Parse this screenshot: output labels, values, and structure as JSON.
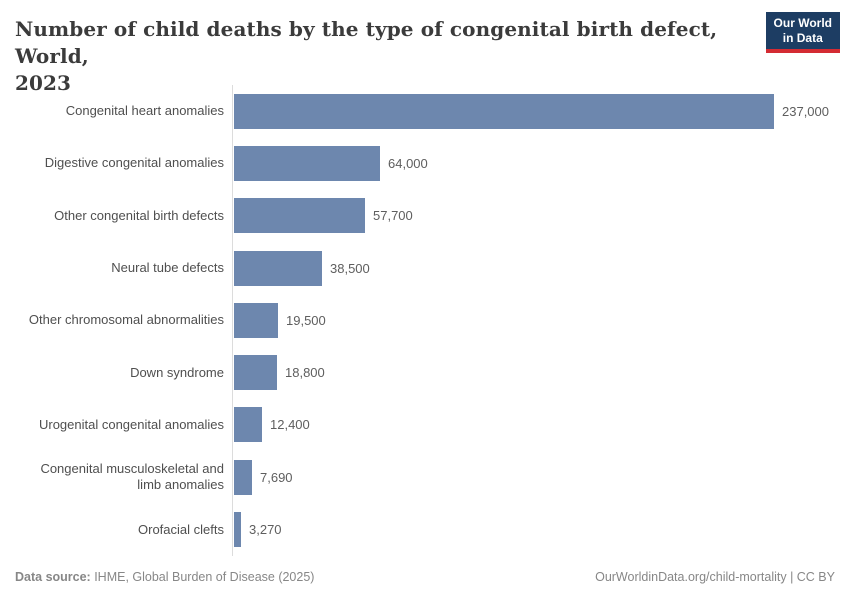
{
  "header": {
    "title_line1": "Number of child deaths by the type of congenital birth defect, World,",
    "title_line2": "2023",
    "logo": {
      "line1": "Our World",
      "line2": "in Data"
    }
  },
  "chart_data": {
    "type": "bar",
    "orientation": "horizontal",
    "title": "Number of child deaths by the type of congenital birth defect, World, 2023",
    "categories": [
      "Congenital heart anomalies",
      "Digestive congenital anomalies",
      "Other congenital birth defects",
      "Neural tube defects",
      "Other chromosomal abnormalities",
      "Down syndrome",
      "Urogenital congenital anomalies",
      "Congenital musculoskeletal and limb anomalies",
      "Orofacial clefts"
    ],
    "values": [
      237000,
      64000,
      57700,
      38500,
      19500,
      18800,
      12400,
      7690,
      3270
    ],
    "value_labels": [
      "237,000",
      "64,000",
      "57,700",
      "38,500",
      "19,500",
      "18,800",
      "12,400",
      "7,690",
      "3,270"
    ],
    "xlim": [
      0,
      237000
    ],
    "grid": false,
    "legend": "none",
    "bar_color": "#6d87ae"
  },
  "footer": {
    "source_label": "Data source:",
    "source_value": " IHME, Global Burden of Disease (2025)",
    "link": "OurWorldinData.org/child-mortality | CC BY"
  },
  "colors": {
    "bar": "#6d87ae",
    "axis_line": "#dcdcdc",
    "title_text": "#3b3b3b",
    "category_label": "#4f4f4f",
    "value_label": "#5e5e5e",
    "footer_text": "#878787",
    "logo_background": "#1d3d63",
    "logo_accent": "#d42b33",
    "logo_text": "#ffffff"
  }
}
